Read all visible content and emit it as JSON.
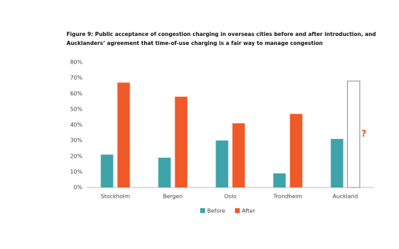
{
  "chart_data": {
    "type": "bar",
    "title": [
      "Figure 9: Public acceptance of congestion charging in overseas cities before and after introduction, and",
      "Aucklanders’ agreement that time-of-use charging is a fair way to manage congestion"
    ],
    "categories": [
      "Stockholm",
      "Bergen",
      "Oslo",
      "Trondheim",
      "Auckland"
    ],
    "series": [
      {
        "name": "Before",
        "color": "#3fa3aa",
        "values": [
          21,
          19,
          30,
          9,
          31
        ]
      },
      {
        "name": "After",
        "color": "#f05a28",
        "values": [
          67,
          58,
          41,
          47,
          null
        ]
      }
    ],
    "annotations": [
      {
        "text": "?",
        "category": "Auckland",
        "series": "After",
        "value": 68,
        "color": "#f05a28"
      }
    ],
    "ylim": [
      0,
      80
    ],
    "yticks": [
      {
        "value": 0,
        "label": "0%"
      },
      {
        "value": 10,
        "label": "10%"
      },
      {
        "value": 20,
        "label": "20%"
      },
      {
        "value": 30,
        "label": "30%"
      },
      {
        "value": 40,
        "label": "40%"
      },
      {
        "value": 50,
        "label": "50%"
      },
      {
        "value": 60,
        "label": "60%"
      },
      {
        "value": 70,
        "label": "70%"
      },
      {
        "value": 80,
        "label": "80%"
      }
    ],
    "grid": false,
    "legend": "bottom"
  }
}
